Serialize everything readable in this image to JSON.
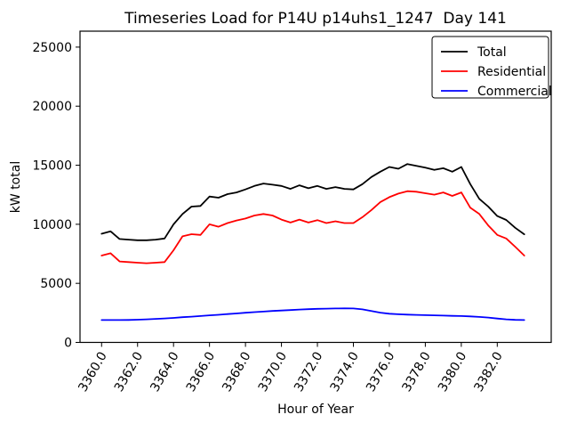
{
  "chart_data": {
    "type": "line",
    "title": "Timeseries Load for P14U p14uhs1_1247  Day 141",
    "xlabel": "Hour of Year",
    "ylabel": "kW total",
    "grid": false,
    "legend_position": "upper right",
    "xlim": [
      3358.8,
      3385.0
    ],
    "ylim": [
      0,
      26350
    ],
    "xticks": [
      3360.0,
      3362.0,
      3364.0,
      3366.0,
      3368.0,
      3370.0,
      3372.0,
      3374.0,
      3376.0,
      3378.0,
      3380.0,
      3382.0
    ],
    "xtick_labels": [
      "3360.0",
      "3362.0",
      "3364.0",
      "3366.0",
      "3368.0",
      "3370.0",
      "3372.0",
      "3374.0",
      "3376.0",
      "3378.0",
      "3380.0",
      "3382.0"
    ],
    "yticks": [
      0,
      5000,
      10000,
      15000,
      20000,
      25000
    ],
    "ytick_labels": [
      "0",
      "5000",
      "10000",
      "15000",
      "20000",
      "25000"
    ],
    "x": [
      3360.0,
      3360.5,
      3361.0,
      3361.5,
      3362.0,
      3362.5,
      3363.0,
      3363.5,
      3364.0,
      3364.5,
      3365.0,
      3365.5,
      3366.0,
      3366.5,
      3367.0,
      3367.5,
      3368.0,
      3368.5,
      3369.0,
      3369.5,
      3370.0,
      3370.5,
      3371.0,
      3371.5,
      3372.0,
      3372.5,
      3373.0,
      3373.5,
      3374.0,
      3374.5,
      3375.0,
      3375.5,
      3376.0,
      3376.5,
      3377.0,
      3377.5,
      3378.0,
      3378.5,
      3379.0,
      3379.5,
      3380.0,
      3380.5,
      3381.0,
      3381.5,
      3382.0,
      3382.5,
      3383.0,
      3383.5
    ],
    "series": [
      {
        "name": "Total",
        "color": "#000000",
        "values": [
          9200,
          9400,
          8750,
          8700,
          8650,
          8650,
          8700,
          8800,
          10000,
          10870,
          11500,
          11550,
          12350,
          12250,
          12550,
          12700,
          12950,
          13250,
          13450,
          13350,
          13250,
          13000,
          13300,
          13050,
          13250,
          13000,
          13150,
          13000,
          12950,
          13400,
          14000,
          14450,
          14850,
          14700,
          15100,
          14950,
          14800,
          14600,
          14750,
          14450,
          14850,
          13400,
          12150,
          11500,
          10700,
          10370,
          9700,
          9150
        ]
      },
      {
        "name": "Residential",
        "color": "#ff0000",
        "values": [
          7350,
          7550,
          6850,
          6800,
          6750,
          6700,
          6750,
          6800,
          7800,
          8980,
          9160,
          9100,
          10000,
          9790,
          10100,
          10320,
          10490,
          10740,
          10870,
          10740,
          10400,
          10150,
          10400,
          10150,
          10350,
          10100,
          10250,
          10100,
          10100,
          10600,
          11200,
          11880,
          12300,
          12600,
          12800,
          12760,
          12630,
          12510,
          12700,
          12400,
          12700,
          11400,
          10870,
          9900,
          9100,
          8800,
          8100,
          7350
        ]
      },
      {
        "name": "Commercial",
        "color": "#0000ff",
        "values": [
          1890,
          1890,
          1890,
          1900,
          1920,
          1950,
          1990,
          2030,
          2070,
          2130,
          2180,
          2230,
          2290,
          2340,
          2400,
          2450,
          2510,
          2560,
          2610,
          2660,
          2700,
          2740,
          2780,
          2810,
          2840,
          2860,
          2870,
          2880,
          2870,
          2800,
          2660,
          2520,
          2430,
          2380,
          2350,
          2330,
          2310,
          2290,
          2270,
          2250,
          2230,
          2200,
          2160,
          2100,
          2020,
          1950,
          1910,
          1890
        ]
      }
    ]
  }
}
